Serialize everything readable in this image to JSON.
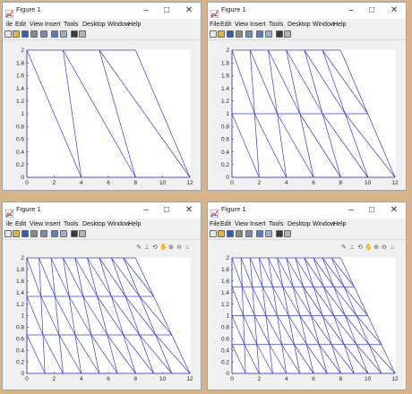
{
  "windows": [
    {
      "title": "Figure 1",
      "menu": [
        "ile",
        "Edit",
        "View",
        "Insert",
        "Tools",
        "Desktop",
        "Window",
        "Help"
      ],
      "show_axes_toolbar": false,
      "x_ticks": [
        "0",
        "2",
        "4",
        "6",
        "8",
        "10",
        "12"
      ],
      "y_ticks": [
        "0",
        "0.2",
        "0.4",
        "0.6",
        "0.8",
        "1",
        "1.2",
        "1.4",
        "1.6",
        "1.8",
        "2"
      ],
      "chart_data": {
        "type": "line",
        "xlim": [
          0,
          12
        ],
        "ylim": [
          0,
          2
        ],
        "description_mesh": "trapezoid bottom 0..12, top 0..8, divided in 3 columns, 1 row",
        "trapezoid": {
          "bottom": [
            0,
            12
          ],
          "top": [
            0,
            8
          ],
          "height": 2
        },
        "cols": 3,
        "rows": 1
      }
    },
    {
      "title": "Figure 1",
      "menu": [
        "File",
        "Edit",
        "View",
        "Insert",
        "Tools",
        "Desktop",
        "Window",
        "Help"
      ],
      "show_axes_toolbar": false,
      "x_ticks": [
        "0",
        "2",
        "4",
        "6",
        "8",
        "10",
        "12"
      ],
      "y_ticks": [
        "0",
        "0.2",
        "0.4",
        "0.6",
        "0.8",
        "1",
        "1.2",
        "1.4",
        "1.6",
        "1.8",
        "2"
      ],
      "chart_data": {
        "type": "line",
        "xlim": [
          0,
          12
        ],
        "ylim": [
          0,
          2
        ],
        "trapezoid": {
          "bottom": [
            0,
            12
          ],
          "top": [
            0,
            8
          ],
          "height": 2
        },
        "cols": 6,
        "rows": 2
      }
    },
    {
      "title": "Figure 1",
      "menu": [
        "ile",
        "Edit",
        "View",
        "Insert",
        "Tools",
        "Desktop",
        "Window",
        "Help"
      ],
      "show_axes_toolbar": true,
      "x_ticks": [
        "0",
        "2",
        "4",
        "6",
        "8",
        "10",
        "12"
      ],
      "y_ticks": [
        "0",
        "0.2",
        "0.4",
        "0.6",
        "0.8",
        "1",
        "1.2",
        "1.4",
        "1.6",
        "1.8",
        "2"
      ],
      "chart_data": {
        "type": "line",
        "xlim": [
          0,
          12
        ],
        "ylim": [
          0,
          2
        ],
        "trapezoid": {
          "bottom": [
            0,
            12
          ],
          "top": [
            0,
            8
          ],
          "height": 2
        },
        "cols": 9,
        "rows": 3
      }
    },
    {
      "title": "Figure 1",
      "menu": [
        "File",
        "Edit",
        "View",
        "Insert",
        "Tools",
        "Desktop",
        "Window",
        "Help"
      ],
      "show_axes_toolbar": true,
      "x_ticks": [
        "0",
        "2",
        "4",
        "6",
        "8",
        "10",
        "12"
      ],
      "y_ticks": [
        "0",
        "0.2",
        "0.4",
        "0.6",
        "0.8",
        "1",
        "1.2",
        "1.4",
        "1.6",
        "1.8",
        "2"
      ],
      "chart_data": {
        "type": "line",
        "xlim": [
          0,
          12
        ],
        "ylim": [
          0,
          2
        ],
        "trapezoid": {
          "bottom": [
            0,
            12
          ],
          "top": [
            0,
            8
          ],
          "height": 2
        },
        "cols": 12,
        "rows": 4
      }
    }
  ],
  "icons": {
    "window_icon": "matlab-figure-icon",
    "minimize": "–",
    "maximize": "□",
    "close": "✕"
  },
  "colors": {
    "mesh": "#3b3bd8",
    "axes_bg": "#ffffff",
    "frame_bg": "#f0f0f0"
  }
}
